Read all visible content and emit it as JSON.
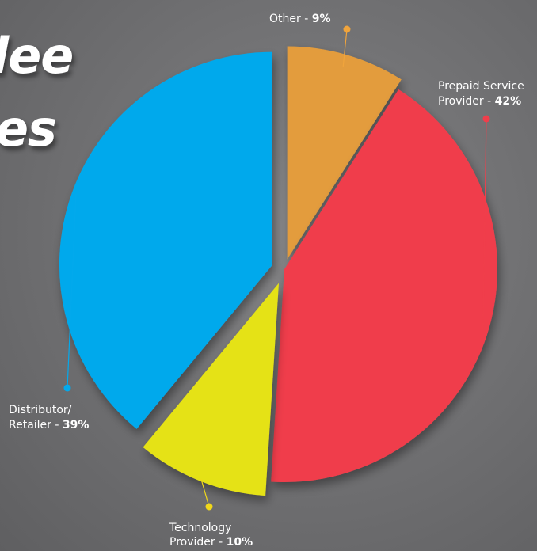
{
  "title_fragments": {
    "line1": "lee",
    "line2": "es"
  },
  "chart_data": {
    "type": "pie",
    "title": "",
    "legend": "callouts",
    "slices": [
      {
        "label_lines": [
          "Other - "
        ],
        "percent_text": "9%",
        "value": 9,
        "color": "#e39c3c",
        "dot_color": "#f0a43c"
      },
      {
        "label_lines": [
          "Prepaid Service",
          "Provider - "
        ],
        "percent_text": "42%",
        "value": 42,
        "color": "#f03e4b",
        "dot_color": "#f03e4b"
      },
      {
        "label_lines": [
          "Technology",
          "Provider - "
        ],
        "percent_text": "10%",
        "value": 10,
        "color": "#e5e215",
        "dot_color": "#f1d81a"
      },
      {
        "label_lines": [
          "Distributor/",
          "Retailer - "
        ],
        "percent_text": "39%",
        "value": 39,
        "color": "#03a9ec",
        "dot_color": "#03a9ec"
      }
    ]
  }
}
